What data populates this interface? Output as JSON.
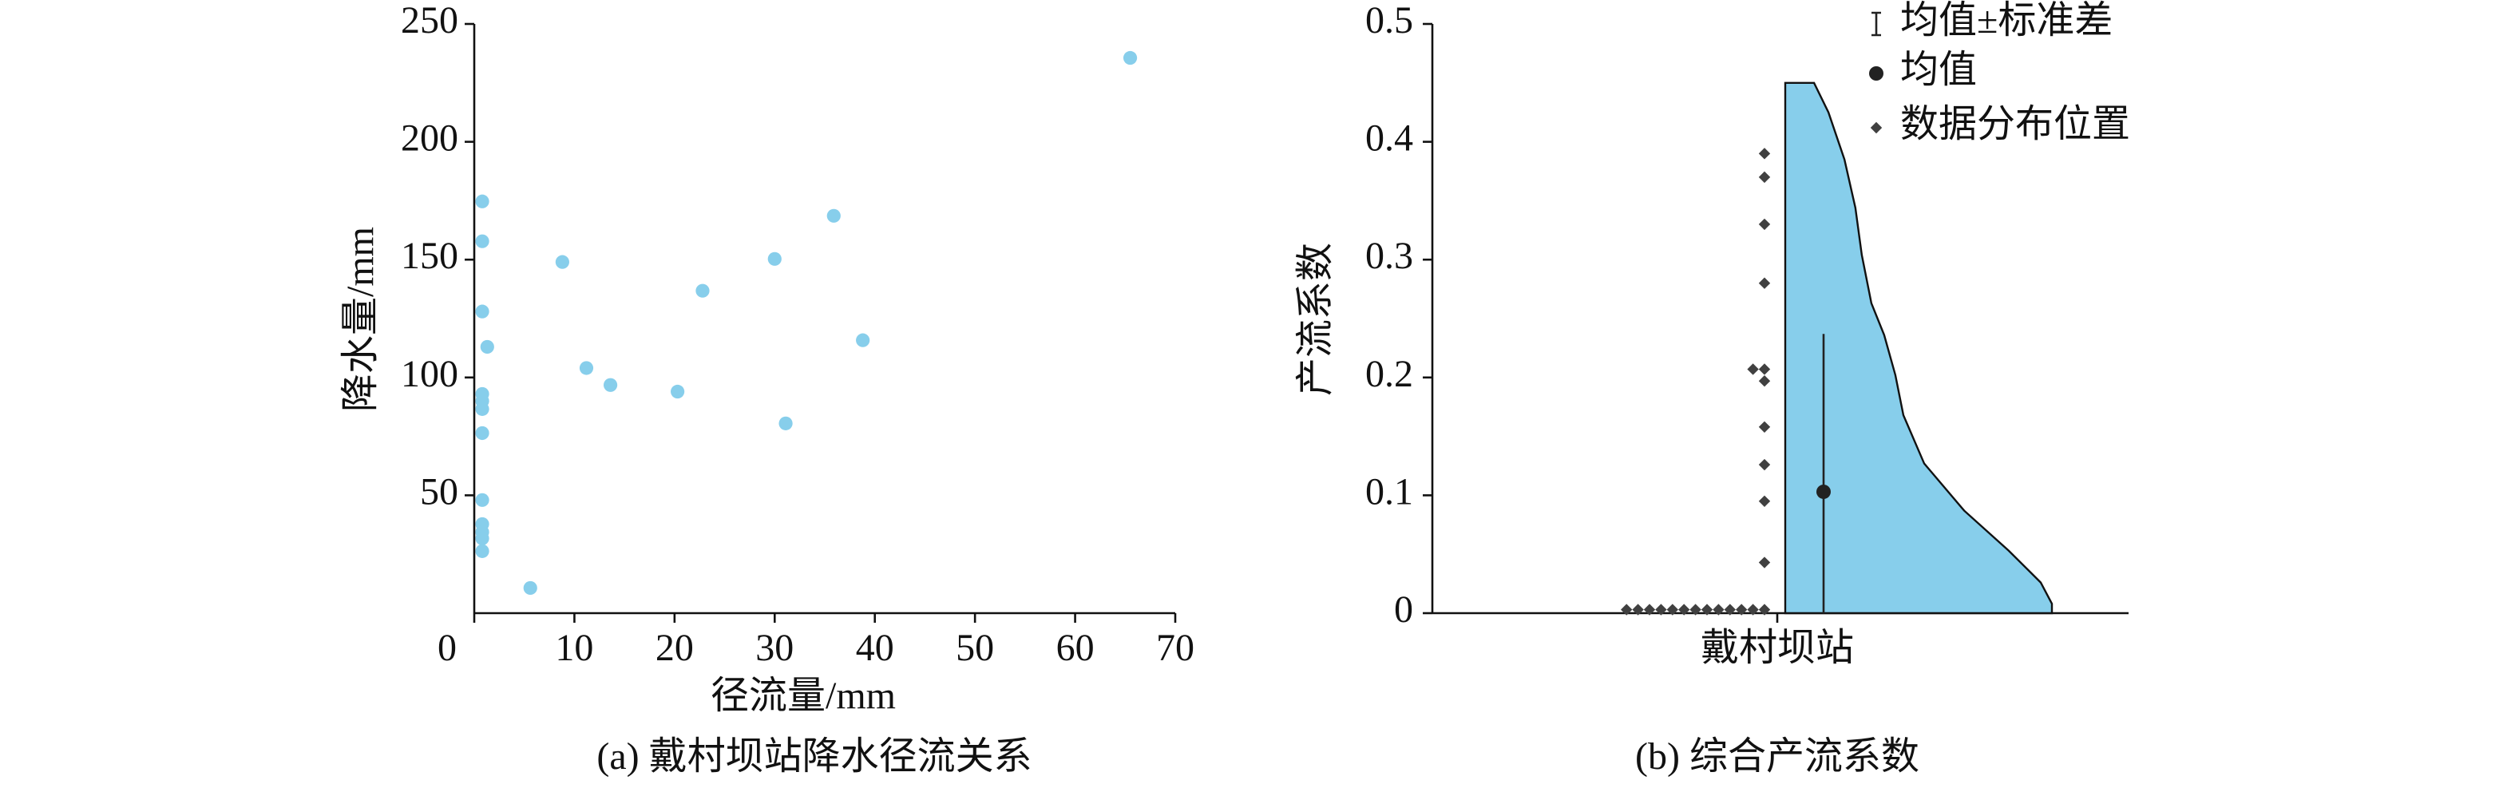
{
  "chart_data": [
    {
      "type": "scatter",
      "title": "(a) 戴村坝站降水径流关系",
      "xlabel": "径流量/mm",
      "ylabel": "降水量/mm",
      "x": [
        65.5,
        0.8,
        0.8,
        0.8,
        1.3,
        0.8,
        0.8,
        0.8,
        0.8,
        0.8,
        0.8,
        0.8,
        0.8,
        0.8,
        5.6,
        8.8,
        11.2,
        13.6,
        20.3,
        22.8,
        30,
        31.1,
        35.9,
        38.8
      ],
      "y": [
        235.6,
        174.7,
        157.8,
        128,
        113,
        93,
        90,
        86.6,
        76.4,
        48,
        37.8,
        34.4,
        31.7,
        26.3,
        10.7,
        149,
        104,
        96.8,
        94,
        136.8,
        150.3,
        80.5,
        168.6,
        115.8
      ],
      "color": "#87ceeb",
      "xlim": [
        0,
        70
      ],
      "ylim": [
        0,
        250
      ],
      "xticks": [
        0,
        10,
        20,
        30,
        40,
        50,
        60,
        70
      ],
      "yticks": [
        50,
        100,
        150,
        200,
        250
      ]
    },
    {
      "type": "violin",
      "title": "(b) 综合产流系数",
      "ylabel": "产流系数",
      "categories": [
        "戴村坝站"
      ],
      "points": [
        0.39,
        0.37,
        0.33,
        0.28,
        0.207,
        0.207,
        0.197,
        0.158,
        0.126,
        0.095,
        0.043,
        0.003,
        0.003,
        0.003,
        0.003,
        0.003,
        0.003,
        0.003,
        0.003,
        0.003,
        0.003,
        0.003,
        0.003,
        0.003
      ],
      "density": {
        "y": [
          0.45,
          0.425,
          0.385,
          0.344,
          0.304,
          0.263,
          0.236,
          0.202,
          0.168,
          0.127,
          0.087,
          0.053,
          0.026,
          0.008,
          0
        ],
        "width": [
          0.108,
          0.162,
          0.222,
          0.263,
          0.287,
          0.323,
          0.371,
          0.413,
          0.443,
          0.521,
          0.671,
          0.838,
          0.958,
          1.0,
          1.0
        ]
      },
      "mean": 0.103,
      "sd": 0.134,
      "color": "#87ceeb",
      "point_color": "#404040",
      "legend": [
        "均值±标准差",
        "均值",
        "数据分布位置"
      ],
      "ylim": [
        0,
        0.5
      ],
      "yticks": [
        0,
        0.1,
        0.2,
        0.3,
        0.4,
        0.5
      ]
    }
  ]
}
